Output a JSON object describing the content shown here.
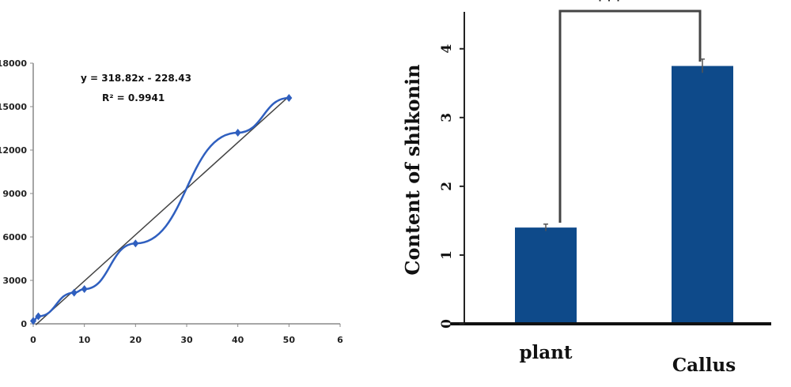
{
  "chart_data": [
    {
      "type": "line",
      "x": [
        0,
        1,
        8,
        10,
        20,
        40,
        50
      ],
      "y": [
        200,
        520,
        2150,
        2400,
        5550,
        13200,
        15600
      ],
      "xticks": [
        "0",
        "10",
        "20",
        "30",
        "40",
        "50",
        "6"
      ],
      "yticks": [
        "0",
        "3000",
        "6000",
        "9000",
        "12000",
        "15000",
        "18000"
      ],
      "xlim": [
        0,
        60
      ],
      "ylim": [
        0,
        18000
      ],
      "trendline": {
        "slope": 318.82,
        "intercept": -228.43
      },
      "equation": "y = 318.82x - 228.43",
      "r2": "R² = 0.9941",
      "colors": {
        "series": "#2f5fbf",
        "trend": "#444444"
      }
    },
    {
      "type": "bar",
      "categories": [
        "plant",
        "Callus"
      ],
      "values": [
        1.4,
        3.75
      ],
      "errors": [
        0.05,
        0.1
      ],
      "ylabel": "Content of shikonin",
      "yticks": [
        "0",
        "1",
        "2",
        "3",
        "4"
      ],
      "ylim": [
        0,
        4.25
      ],
      "significance": "***",
      "colors": {
        "bar": "#0e4a8a"
      }
    }
  ]
}
